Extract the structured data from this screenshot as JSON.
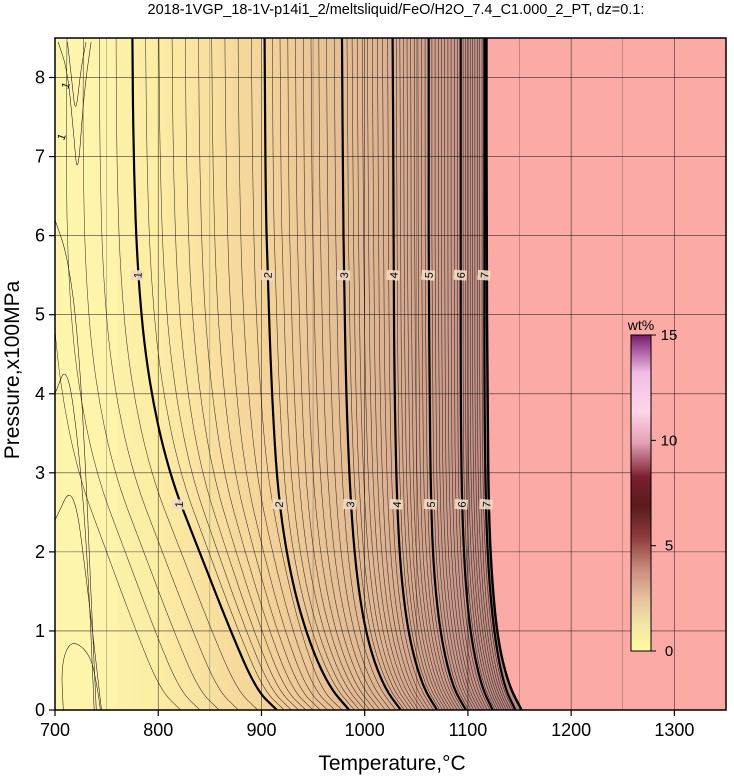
{
  "chart_data": {
    "type": "heatmap",
    "title": "2018-1VGP_18-1V-p14i1_2/meltsliquid/FeO/H2O_7.4_C1.000_2_PT, dz=0.1:",
    "xlabel": "Temperature,°C",
    "ylabel": "Pressure,x100MPa",
    "xlim": [
      700,
      1350
    ],
    "ylim": [
      0,
      8.5
    ],
    "x_ticks": [
      "700",
      "800",
      "900",
      "1000",
      "1100",
      "1200",
      "1300"
    ],
    "y_ticks": [
      "0",
      "1",
      "2",
      "3",
      "4",
      "5",
      "6",
      "7",
      "8"
    ],
    "grid": true,
    "colorbar": {
      "label": "wt%",
      "range": [
        0,
        15
      ],
      "ticks": [
        "0",
        "5",
        "10",
        "15"
      ]
    },
    "field_colors": {
      "low": "#fef3a8",
      "mid": "#d8a88e",
      "high": "#b07e7a",
      "no_melt_region": "#fcaaa6"
    },
    "liquidus_line": {
      "name": "",
      "points": [
        [
          1118,
          8.5
        ],
        [
          1118,
          6.0
        ],
        [
          1119,
          4.0
        ],
        [
          1120,
          2.5
        ],
        [
          1124,
          1.5
        ],
        [
          1130,
          0.8
        ],
        [
          1140,
          0.3
        ],
        [
          1152,
          0.0
        ]
      ]
    },
    "major_contours": [
      {
        "level": "1",
        "points": [
          [
            775,
            8.5
          ],
          [
            776,
            7.0
          ],
          [
            780,
            5.5
          ],
          [
            790,
            4.2
          ],
          [
            810,
            3.0
          ],
          [
            840,
            2.0
          ],
          [
            870,
            1.0
          ],
          [
            895,
            0.25
          ],
          [
            915,
            0.0
          ]
        ]
      },
      {
        "level": "2",
        "points": [
          [
            903,
            8.5
          ],
          [
            904,
            6.5
          ],
          [
            906,
            5.5
          ],
          [
            910,
            4.0
          ],
          [
            916,
            2.7
          ],
          [
            928,
            1.7
          ],
          [
            945,
            0.9
          ],
          [
            965,
            0.3
          ],
          [
            985,
            0.0
          ]
        ]
      },
      {
        "level": "3",
        "points": [
          [
            978,
            8.5
          ],
          [
            979,
            6.5
          ],
          [
            980,
            5.5
          ],
          [
            982,
            4.0
          ],
          [
            986,
            2.7
          ],
          [
            992,
            1.7
          ],
          [
            1002,
            0.9
          ],
          [
            1018,
            0.3
          ],
          [
            1035,
            0.0
          ]
        ]
      },
      {
        "level": "4",
        "points": [
          [
            1027,
            8.5
          ],
          [
            1028,
            6.5
          ],
          [
            1028,
            5.5
          ],
          [
            1029,
            4.0
          ],
          [
            1031,
            2.7
          ],
          [
            1035,
            1.7
          ],
          [
            1043,
            0.9
          ],
          [
            1056,
            0.3
          ],
          [
            1070,
            0.0
          ]
        ]
      },
      {
        "level": "5",
        "points": [
          [
            1062,
            8.5
          ],
          [
            1062,
            6.5
          ],
          [
            1062,
            5.5
          ],
          [
            1063,
            4.0
          ],
          [
            1064,
            2.7
          ],
          [
            1067,
            1.7
          ],
          [
            1074,
            0.9
          ],
          [
            1085,
            0.3
          ],
          [
            1098,
            0.0
          ]
        ]
      },
      {
        "level": "6",
        "points": [
          [
            1093,
            8.5
          ],
          [
            1093,
            6.5
          ],
          [
            1093,
            5.5
          ],
          [
            1093,
            4.0
          ],
          [
            1094,
            2.7
          ],
          [
            1097,
            1.7
          ],
          [
            1103,
            0.9
          ],
          [
            1113,
            0.3
          ],
          [
            1124,
            0.0
          ]
        ]
      },
      {
        "level": "7",
        "points": [
          [
            1116,
            8.5
          ],
          [
            1116,
            6.5
          ],
          [
            1116,
            5.5
          ],
          [
            1116,
            4.0
          ],
          [
            1117,
            2.7
          ],
          [
            1120,
            1.7
          ],
          [
            1126,
            0.9
          ],
          [
            1135,
            0.3
          ],
          [
            1146,
            0.0
          ]
        ]
      }
    ],
    "contour_label_positions": {
      "1": [
        [
          780,
          5.5
        ],
        [
          820,
          2.6
        ]
      ],
      "2": [
        [
          906,
          5.5
        ],
        [
          917,
          2.6
        ]
      ],
      "3": [
        [
          980,
          5.5
        ],
        [
          986,
          2.6
        ]
      ],
      "4": [
        [
          1028,
          5.5
        ],
        [
          1031,
          2.6
        ]
      ],
      "5": [
        [
          1062,
          5.5
        ],
        [
          1064,
          2.6
        ]
      ],
      "6": [
        [
          1093,
          5.5
        ],
        [
          1094,
          2.6
        ]
      ],
      "7": [
        [
          1116,
          5.5
        ],
        [
          1118,
          2.6
        ]
      ]
    },
    "low_region_label": "1"
  }
}
